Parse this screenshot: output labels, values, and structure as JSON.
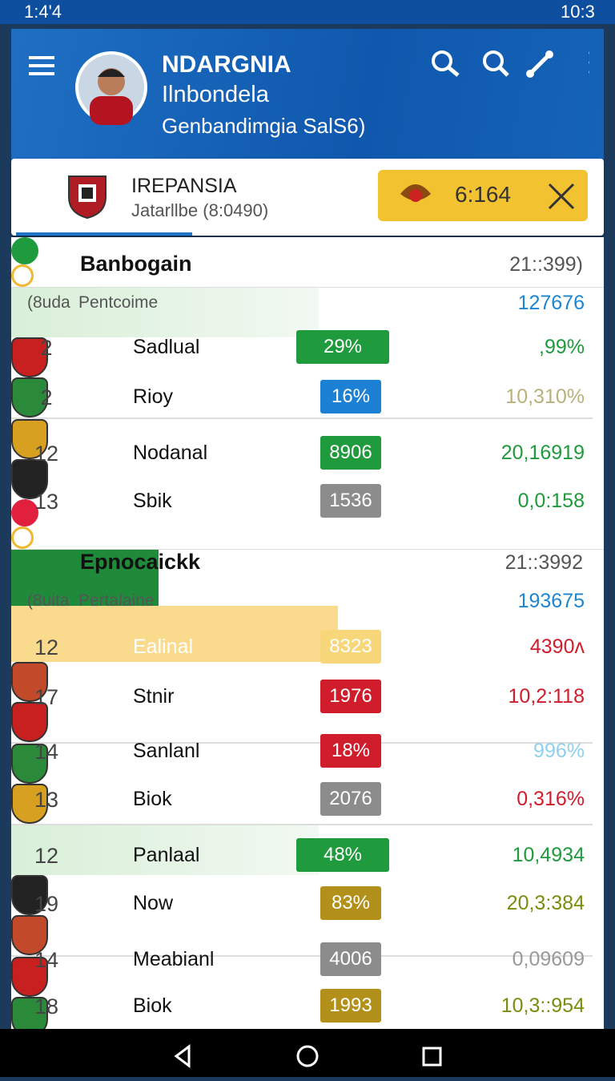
{
  "status": {
    "time_left": "1:4'4",
    "time_right": "10:3"
  },
  "header": {
    "title": "NDARGNIA",
    "subtitle": "Ilnbondela",
    "caption": "Genbandimgia SalS6)"
  },
  "match": {
    "team": "IREPANSIA",
    "detail": "Jatarllbe (8:0490)",
    "score": "6:164"
  },
  "sections": [
    {
      "name": "Banbogain",
      "time": "21::399)",
      "label_a": "(8uda",
      "label_b": "Pentcoime",
      "value": "127676",
      "rows": [
        [
          "2",
          "Sadlual",
          "29%",
          ",99%"
        ],
        [
          "2",
          "Rioy",
          "16%",
          "10,310%"
        ],
        [
          "12",
          "Nodanal",
          "8906",
          "20,16919"
        ],
        [
          "13",
          "Sbik",
          "1536",
          "0,0:158"
        ]
      ]
    },
    {
      "name": "Epnocaickk",
      "time": "21::3992",
      "label_a": "(8uita",
      "label_b": "Pertalaine",
      "value": "193675",
      "rows": [
        [
          "12",
          "Ealinal",
          "8323",
          "4390ʌ"
        ],
        [
          "17",
          "Stnir",
          "1976",
          "10,2:118"
        ],
        [
          "14",
          "Sanlanl",
          "18%",
          "996%"
        ],
        [
          "13",
          "Biok",
          "2076",
          "0,316%"
        ],
        [
          "12",
          "Panlaal",
          "48%",
          "10,4934"
        ],
        [
          "19",
          "Now",
          "83%",
          "20,3:384"
        ],
        [
          "14",
          "Meabianl",
          "4006",
          "0,09609"
        ],
        [
          "18",
          "Biok",
          "1993",
          "10,3::954"
        ]
      ]
    }
  ]
}
